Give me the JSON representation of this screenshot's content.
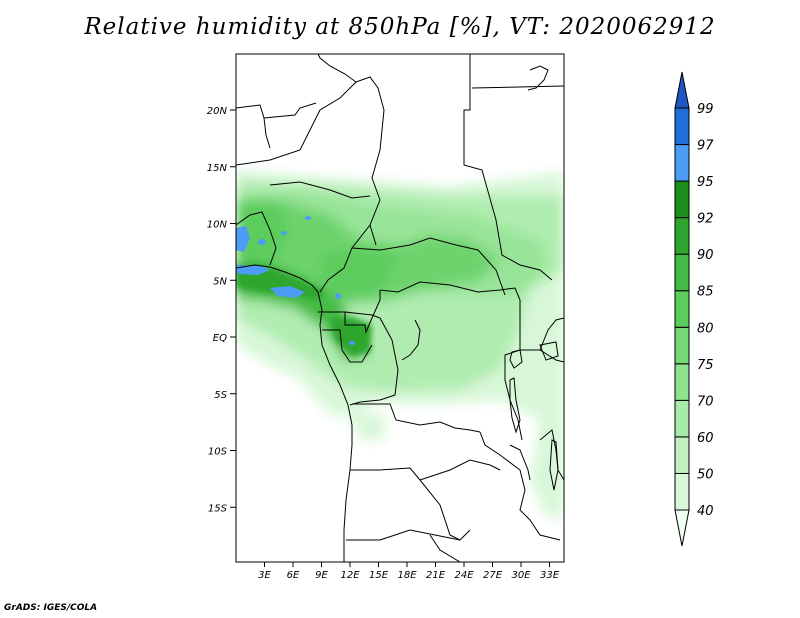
{
  "title": "Relative humidity at 850hPa [%], VT: 2020062912",
  "credit": "GrADS: IGES/COLA",
  "map": {
    "variable": "Relative humidity at 850hPa",
    "units": "%",
    "valid_time": "2020062912",
    "lat_labels": [
      "20N",
      "15N",
      "10N",
      "5N",
      "EQ",
      "5S",
      "10S",
      "15S"
    ],
    "lon_labels": [
      "3E",
      "6E",
      "9E",
      "12E",
      "15E",
      "18E",
      "21E",
      "24E",
      "27E",
      "30E",
      "33E"
    ]
  },
  "colorbar": {
    "levels": [
      "40",
      "50",
      "60",
      "70",
      "75",
      "80",
      "85",
      "90",
      "92",
      "95",
      "97",
      "99"
    ],
    "colors": [
      "#f0fff0",
      "#d8f7d8",
      "#c2f0c2",
      "#a8eaa8",
      "#8fe38f",
      "#74d974",
      "#5ccc5c",
      "#44bb44",
      "#2fa62f",
      "#1b901b",
      "#4d9cf5",
      "#1e6fd8",
      "#1f56c4"
    ]
  }
}
